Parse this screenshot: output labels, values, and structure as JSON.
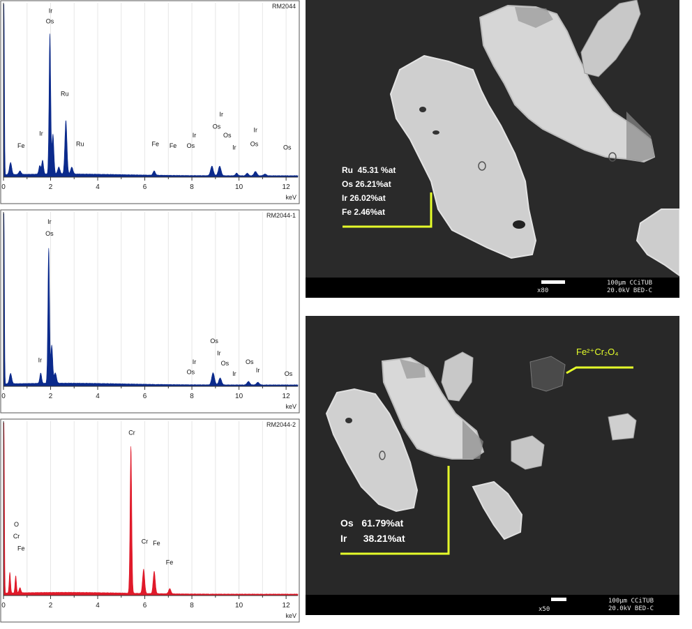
{
  "chart_data": [
    {
      "type": "line",
      "title": "RM2044",
      "xlabel": "keV",
      "xlim": [
        0,
        12.5
      ],
      "ylim": [
        0,
        1
      ],
      "xticks": [
        "0",
        "2",
        "4",
        "6",
        "8",
        "10",
        "12"
      ],
      "color": "#0b2a8c",
      "peaks": [
        {
          "x": 0.02,
          "h": 1.0,
          "w": 0.02
        },
        {
          "x": 0.3,
          "h": 0.07,
          "w": 0.05
        },
        {
          "x": 0.7,
          "h": 0.02,
          "w": 0.05
        },
        {
          "x": 1.54,
          "h": 0.05,
          "w": 0.04
        },
        {
          "x": 1.66,
          "h": 0.08,
          "w": 0.04
        },
        {
          "x": 1.97,
          "h": 0.81,
          "w": 0.035
        },
        {
          "x": 2.1,
          "h": 0.23,
          "w": 0.04
        },
        {
          "x": 2.35,
          "h": 0.04,
          "w": 0.05
        },
        {
          "x": 2.65,
          "h": 0.31,
          "w": 0.045
        },
        {
          "x": 2.9,
          "h": 0.04,
          "w": 0.05
        },
        {
          "x": 6.4,
          "h": 0.025,
          "w": 0.05
        },
        {
          "x": 8.85,
          "h": 0.055,
          "w": 0.06
        },
        {
          "x": 9.18,
          "h": 0.055,
          "w": 0.06
        },
        {
          "x": 9.9,
          "h": 0.015,
          "w": 0.05
        },
        {
          "x": 10.35,
          "h": 0.015,
          "w": 0.05
        },
        {
          "x": 10.7,
          "h": 0.025,
          "w": 0.06
        },
        {
          "x": 11.1,
          "h": 0.01,
          "w": 0.06
        }
      ],
      "labels": [
        {
          "text": "Ir",
          "x": 2.0,
          "y": 0.95
        },
        {
          "text": "Os",
          "x": 1.97,
          "y": 0.89
        },
        {
          "text": "Ru",
          "x": 2.6,
          "y": 0.47
        },
        {
          "text": "Ir",
          "x": 1.6,
          "y": 0.24
        },
        {
          "text": "Fe",
          "x": 0.75,
          "y": 0.17
        },
        {
          "text": "Ru",
          "x": 3.25,
          "y": 0.18
        },
        {
          "text": "Fe",
          "x": 6.45,
          "y": 0.18
        },
        {
          "text": "Fe",
          "x": 7.2,
          "y": 0.17
        },
        {
          "text": "Os",
          "x": 7.95,
          "y": 0.17
        },
        {
          "text": "Ir",
          "x": 8.1,
          "y": 0.23
        },
        {
          "text": "Os",
          "x": 9.05,
          "y": 0.28
        },
        {
          "text": "Ir",
          "x": 9.25,
          "y": 0.35
        },
        {
          "text": "Os",
          "x": 9.5,
          "y": 0.23
        },
        {
          "text": "Ir",
          "x": 9.8,
          "y": 0.16
        },
        {
          "text": "Ir",
          "x": 10.7,
          "y": 0.26
        },
        {
          "text": "Os",
          "x": 10.65,
          "y": 0.18
        },
        {
          "text": "Os",
          "x": 12.05,
          "y": 0.16
        }
      ]
    },
    {
      "type": "line",
      "title": "RM2044-1",
      "xlabel": "keV",
      "xlim": [
        0,
        12.5
      ],
      "ylim": [
        0,
        1
      ],
      "xticks": [
        "0",
        "2",
        "4",
        "6",
        "8",
        "10",
        "12"
      ],
      "color": "#0b2a8c",
      "peaks": [
        {
          "x": 0.02,
          "h": 1.0,
          "w": 0.02
        },
        {
          "x": 0.3,
          "h": 0.06,
          "w": 0.05
        },
        {
          "x": 1.58,
          "h": 0.06,
          "w": 0.04
        },
        {
          "x": 1.92,
          "h": 0.78,
          "w": 0.035
        },
        {
          "x": 2.05,
          "h": 0.22,
          "w": 0.04
        },
        {
          "x": 2.2,
          "h": 0.06,
          "w": 0.05
        },
        {
          "x": 8.9,
          "h": 0.07,
          "w": 0.06
        },
        {
          "x": 9.2,
          "h": 0.04,
          "w": 0.06
        },
        {
          "x": 10.4,
          "h": 0.02,
          "w": 0.06
        },
        {
          "x": 10.8,
          "h": 0.015,
          "w": 0.06
        }
      ],
      "labels": [
        {
          "text": "Ir",
          "x": 1.95,
          "y": 0.94
        },
        {
          "text": "Os",
          "x": 1.95,
          "y": 0.87
        },
        {
          "text": "Ir",
          "x": 1.55,
          "y": 0.14
        },
        {
          "text": "Os",
          "x": 8.95,
          "y": 0.25
        },
        {
          "text": "Ir",
          "x": 9.15,
          "y": 0.18
        },
        {
          "text": "Os",
          "x": 9.4,
          "y": 0.12
        },
        {
          "text": "Ir",
          "x": 8.1,
          "y": 0.13
        },
        {
          "text": "Os",
          "x": 7.95,
          "y": 0.07
        },
        {
          "text": "Os",
          "x": 10.45,
          "y": 0.13
        },
        {
          "text": "Ir",
          "x": 10.8,
          "y": 0.08
        },
        {
          "text": "Ir",
          "x": 9.8,
          "y": 0.06
        },
        {
          "text": "Os",
          "x": 12.1,
          "y": 0.06
        }
      ]
    },
    {
      "type": "line",
      "title": "RM2044-2",
      "xlabel": "keV",
      "xlim": [
        0,
        12.5
      ],
      "ylim": [
        0,
        1
      ],
      "xticks": [
        "0",
        "2",
        "4",
        "6",
        "8",
        "10",
        "12"
      ],
      "color": "#e01a2a",
      "peaks": [
        {
          "x": 0.02,
          "h": 1.0,
          "w": 0.02
        },
        {
          "x": 0.27,
          "h": 0.12,
          "w": 0.03
        },
        {
          "x": 0.52,
          "h": 0.1,
          "w": 0.03
        },
        {
          "x": 0.7,
          "h": 0.03,
          "w": 0.04
        },
        {
          "x": 5.41,
          "h": 0.85,
          "w": 0.035
        },
        {
          "x": 5.95,
          "h": 0.14,
          "w": 0.045
        },
        {
          "x": 6.4,
          "h": 0.13,
          "w": 0.045
        },
        {
          "x": 7.06,
          "h": 0.03,
          "w": 0.05
        }
      ],
      "labels": [
        {
          "text": "Cr",
          "x": 5.45,
          "y": 0.93
        },
        {
          "text": "Cr",
          "x": 6.0,
          "y": 0.3
        },
        {
          "text": "Fe",
          "x": 6.5,
          "y": 0.29
        },
        {
          "text": "Fe",
          "x": 7.05,
          "y": 0.18
        },
        {
          "text": "O",
          "x": 0.55,
          "y": 0.4
        },
        {
          "text": "Cr",
          "x": 0.55,
          "y": 0.33
        },
        {
          "text": "Fe",
          "x": 0.75,
          "y": 0.26
        }
      ]
    }
  ],
  "sem_top": {
    "composition": [
      {
        "el": "Ru",
        "val": "45.31 %at"
      },
      {
        "el": "Os",
        "val": "26.21%at"
      },
      {
        "el": "Ir",
        "val": "26.02%at"
      },
      {
        "el": "Fe",
        "val": "2.46%at"
      }
    ],
    "scale": "100µm CCiTUB",
    "kv": "20.0kV BED-C",
    "mag": "x80"
  },
  "sem_bottom": {
    "composition": [
      {
        "el": "Os",
        "val": "61.79%at"
      },
      {
        "el": "Ir",
        "val": "38.21%at"
      }
    ],
    "phase_label": "Fe²⁺Cr₂O₄",
    "scale": "100µm CCiTUB",
    "kv": "20.0kV BED-C",
    "mag": "x50"
  },
  "colors": {
    "blue_spectrum": "#0b2a8c",
    "red_spectrum": "#e01a2a",
    "highlight": "#e6ff2a"
  }
}
